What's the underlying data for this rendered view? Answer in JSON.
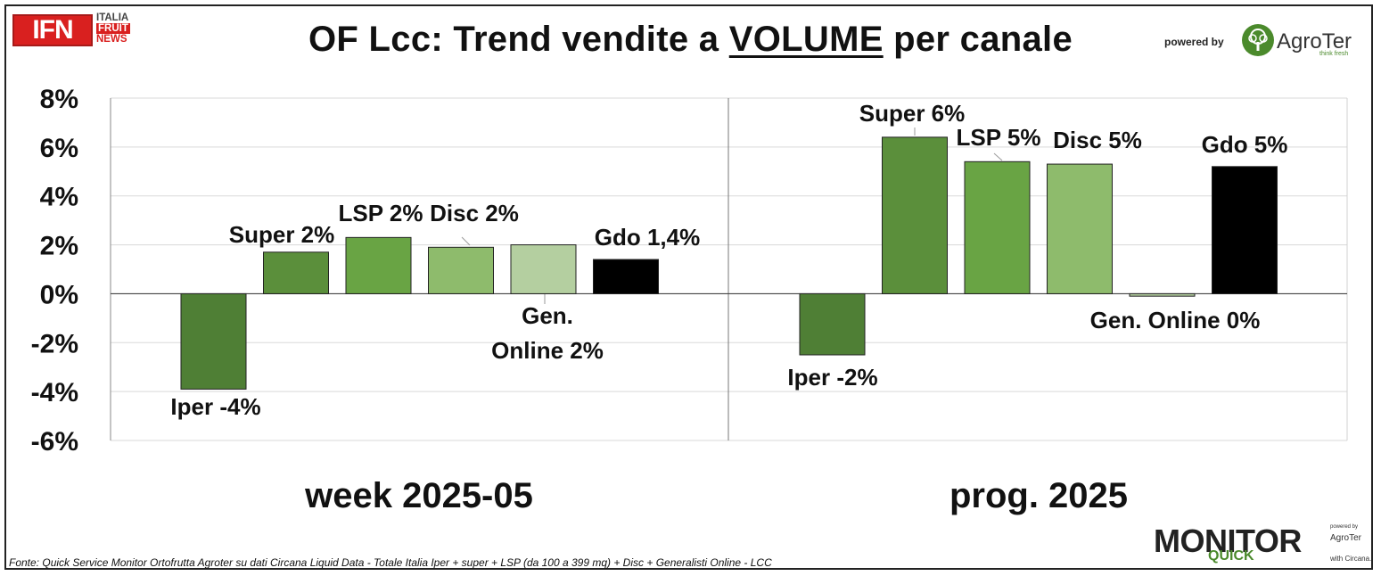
{
  "title_prefix": "OF Lcc: Trend vendite a ",
  "title_underlined": "VOLUME",
  "title_suffix": " per canale",
  "logo_left": {
    "main": "IFN",
    "line1": "ITALIA",
    "line2": "FRUIT",
    "line3": "NEWS"
  },
  "logo_right": {
    "powered_by": "powered by",
    "brand": "AgroTer",
    "tagline": "think fresh"
  },
  "footnote": "Fonte: Quick Service Monitor Ortofrutta Agroter su dati Circana Liquid Data - Totale Italia Iper + super + LSP (da 100 a 399 mq) + Disc + Generalisti Online - LCC",
  "monitor_logo": {
    "monitor": "MONITOR",
    "quick": "QUICK",
    "powered_by": "powered by",
    "agroter": "AgroTer",
    "with": "with",
    "circana": "Circana."
  },
  "colors": {
    "iper": "#4f7f35",
    "super": "#5b8f3b",
    "lsp": "#69a444",
    "disc": "#8ebb6c",
    "gen_online": "#b4cfa0",
    "gdo": "#000000"
  },
  "chart_data": {
    "type": "bar",
    "ylim": [
      -0.06,
      0.08
    ],
    "yticks": [
      "8%",
      "6%",
      "4%",
      "2%",
      "0%",
      "-2%",
      "-4%",
      "-6%"
    ],
    "grid": true,
    "panels": [
      {
        "label": "week 2025-05",
        "bars": [
          {
            "name": "Iper",
            "value": -0.039,
            "label": "Iper -4%"
          },
          {
            "name": "Super",
            "value": 0.017,
            "label": "Super 2%"
          },
          {
            "name": "LSP",
            "value": 0.023,
            "label": "LSP 2%"
          },
          {
            "name": "Disc",
            "value": 0.019,
            "label": "Disc 2%"
          },
          {
            "name": "Gen. Online",
            "value": 0.02,
            "label": "Gen. Online 2%"
          },
          {
            "name": "Gdo",
            "value": 0.014,
            "label": "Gdo 1,4%"
          }
        ]
      },
      {
        "label": "prog. 2025",
        "bars": [
          {
            "name": "Iper",
            "value": -0.025,
            "label": "Iper -2%"
          },
          {
            "name": "Super",
            "value": 0.064,
            "label": "Super 6%"
          },
          {
            "name": "LSP",
            "value": 0.054,
            "label": "LSP 5%"
          },
          {
            "name": "Disc",
            "value": 0.053,
            "label": "Disc 5%"
          },
          {
            "name": "Gen. Online",
            "value": -0.001,
            "label": "Gen. Online 0%"
          },
          {
            "name": "Gdo",
            "value": 0.052,
            "label": "Gdo 5%"
          }
        ]
      }
    ]
  }
}
